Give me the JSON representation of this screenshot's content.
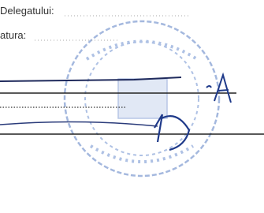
{
  "fields": [
    {
      "label": "Delegatului:"
    },
    {
      "label": "atura:"
    }
  ]
}
